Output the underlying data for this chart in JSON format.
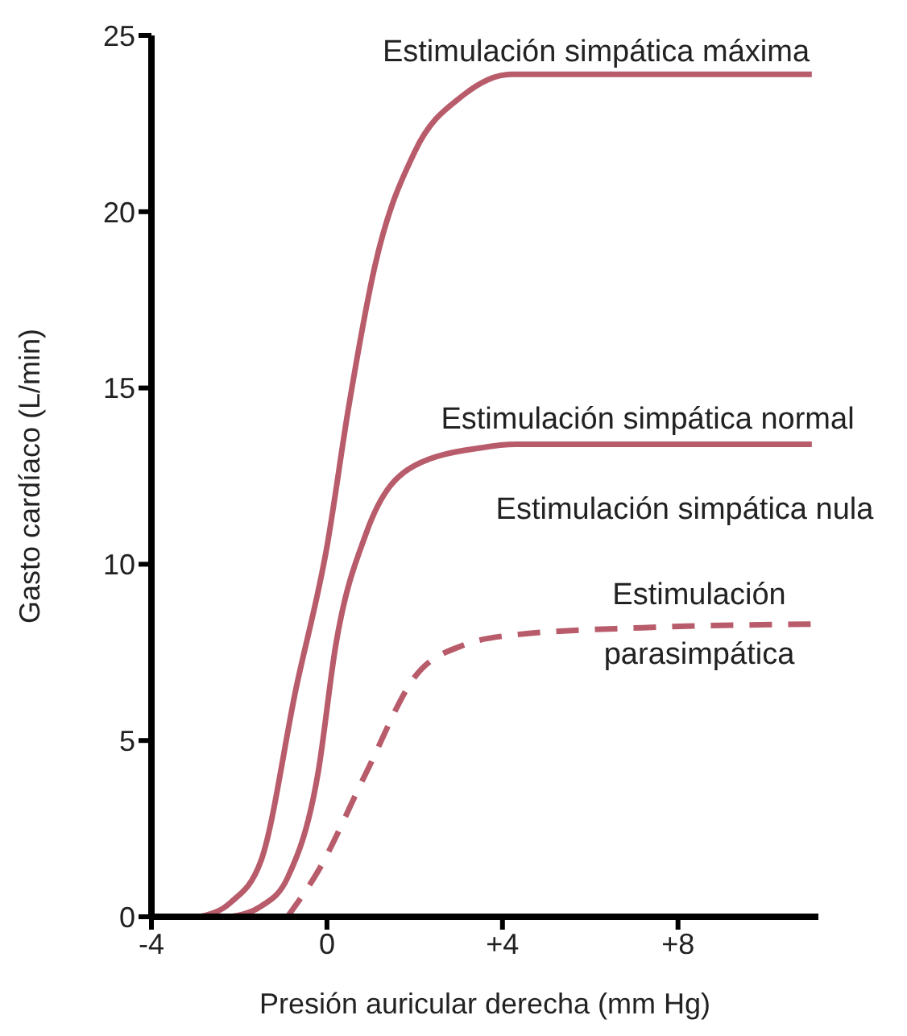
{
  "chart_data": {
    "type": "line",
    "xlabel": "Presión auricular derecha (mm Hg)",
    "ylabel": "Gasto cardíaco (L/min)",
    "xlim": [
      -4,
      11.2
    ],
    "xticks": [
      -4,
      0,
      {
        "value": 4,
        "label": "+4"
      },
      {
        "value": 8,
        "label": "+8"
      }
    ],
    "ylim": [
      0,
      25
    ],
    "yticks": [
      0,
      5,
      10,
      15,
      20,
      25
    ],
    "grid": false,
    "marker": "none",
    "series": [
      {
        "color": "#b85c6b",
        "line_style": "solid",
        "x": [
          -2.9,
          -2.2,
          -1.5,
          -0.7,
          0,
          0.5,
          1.1,
          2,
          3.1,
          4.2,
          11.05
        ],
        "values": [
          0,
          0.4,
          1.6,
          6.5,
          10.5,
          14.5,
          18.5,
          21.7,
          23.3,
          23.9,
          23.9
        ]
      },
      {
        "color": "#b85c6b",
        "line_style": "solid",
        "x": [
          -2.2,
          -1.5,
          -0.9,
          -0.2,
          0.2,
          0.9,
          2,
          3.5,
          4.3,
          11.05
        ],
        "values": [
          0,
          0.3,
          1.1,
          4.1,
          7.7,
          10.9,
          12.8,
          13.3,
          13.4,
          13.4
        ]
      },
      {
        "color": "#b85c6b",
        "line_style": "dashed",
        "x": [
          -0.9,
          -0.2,
          0.9,
          2,
          3.1,
          4.3,
          7.2,
          11.05
        ],
        "values": [
          0,
          1.3,
          4.1,
          6.8,
          7.7,
          8.0,
          8.2,
          8.3
        ]
      }
    ],
    "annotations": [
      "Estimulación simpática máxima",
      "Estimulación simpática normal",
      "Estimulación simpática nula",
      "Estimulación\nparasimpática"
    ]
  }
}
